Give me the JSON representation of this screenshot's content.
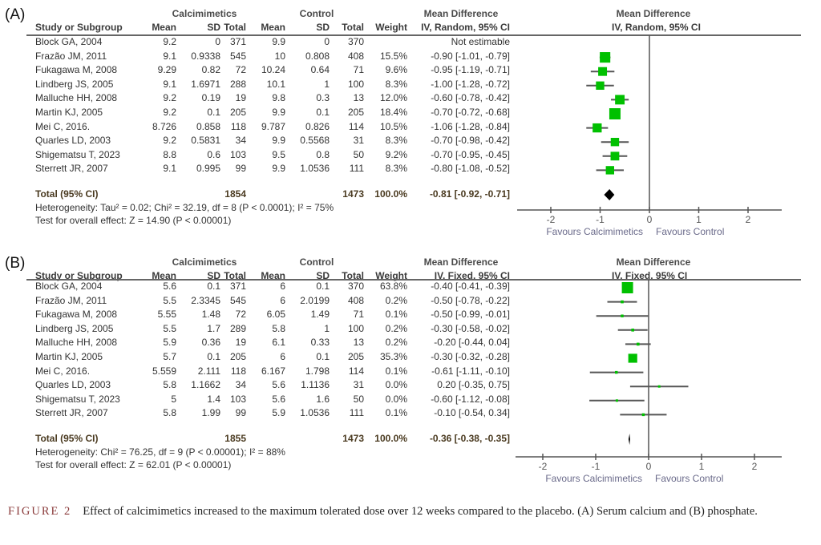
{
  "caption": {
    "label": "FIGURE 2",
    "text": "Effect of calcimimetics increased to the maximum tolerated dose over 12 weeks compared to the placebo. (A) Serum calcium and (B) phosphate."
  },
  "columns": {
    "study": "Study or Subgroup",
    "mean": "Mean",
    "sd": "SD",
    "total": "Total",
    "weight": "Weight",
    "group_exp": "Calcimimetics",
    "group_ctrl": "Control",
    "md_title": "Mean Difference"
  },
  "chart_data": [
    {
      "type": "forest",
      "panel": "(A)",
      "method": "IV, Random, 95% CI",
      "xlim": [
        -2.5,
        2.7
      ],
      "xticks": [
        "-2",
        "-1",
        "0",
        "1",
        "2"
      ],
      "xtick_values": [
        -2,
        -1,
        0,
        1,
        2
      ],
      "favours_left": "Favours Calcimimetics",
      "favours_right": "Favours Control",
      "studies": [
        {
          "name": "Block GA, 2004",
          "e_mean": "9.2",
          "e_sd": "0",
          "e_total": "371",
          "c_mean": "9.9",
          "c_sd": "0",
          "c_total": "370",
          "weight": "",
          "ci_text": "Not estimable",
          "md": null,
          "lo": null,
          "hi": null,
          "w": 0
        },
        {
          "name": "Frazão JM, 2011",
          "e_mean": "9.1",
          "e_sd": "0.9338",
          "e_total": "545",
          "c_mean": "10",
          "c_sd": "0.808",
          "c_total": "408",
          "weight": "15.5%",
          "ci_text": "-0.90 [-1.01, -0.79]",
          "md": -0.9,
          "lo": -1.01,
          "hi": -0.79,
          "w": 15.5
        },
        {
          "name": "Fukagawa M, 2008",
          "e_mean": "9.29",
          "e_sd": "0.82",
          "e_total": "72",
          "c_mean": "10.24",
          "c_sd": "0.64",
          "c_total": "71",
          "weight": "9.6%",
          "ci_text": "-0.95 [-1.19, -0.71]",
          "md": -0.95,
          "lo": -1.19,
          "hi": -0.71,
          "w": 9.6
        },
        {
          "name": "Lindberg JS, 2005",
          "e_mean": "9.1",
          "e_sd": "1.6971",
          "e_total": "288",
          "c_mean": "10.1",
          "c_sd": "1",
          "c_total": "100",
          "weight": "8.3%",
          "ci_text": "-1.00 [-1.28, -0.72]",
          "md": -1.0,
          "lo": -1.28,
          "hi": -0.72,
          "w": 8.3
        },
        {
          "name": "Malluche HH, 2008",
          "e_mean": "9.2",
          "e_sd": "0.19",
          "e_total": "19",
          "c_mean": "9.8",
          "c_sd": "0.3",
          "c_total": "13",
          "weight": "12.0%",
          "ci_text": "-0.60 [-0.78, -0.42]",
          "md": -0.6,
          "lo": -0.78,
          "hi": -0.42,
          "w": 12.0
        },
        {
          "name": "Martin KJ, 2005",
          "e_mean": "9.2",
          "e_sd": "0.1",
          "e_total": "205",
          "c_mean": "9.9",
          "c_sd": "0.1",
          "c_total": "205",
          "weight": "18.4%",
          "ci_text": "-0.70 [-0.72, -0.68]",
          "md": -0.7,
          "lo": -0.72,
          "hi": -0.68,
          "w": 18.4
        },
        {
          "name": "Mei C, 2016.",
          "e_mean": "8.726",
          "e_sd": "0.858",
          "e_total": "118",
          "c_mean": "9.787",
          "c_sd": "0.826",
          "c_total": "114",
          "weight": "10.5%",
          "ci_text": "-1.06 [-1.28, -0.84]",
          "md": -1.06,
          "lo": -1.28,
          "hi": -0.84,
          "w": 10.5
        },
        {
          "name": "Quarles LD, 2003",
          "e_mean": "9.2",
          "e_sd": "0.5831",
          "e_total": "34",
          "c_mean": "9.9",
          "c_sd": "0.5568",
          "c_total": "31",
          "weight": "8.3%",
          "ci_text": "-0.70 [-0.98, -0.42]",
          "md": -0.7,
          "lo": -0.98,
          "hi": -0.42,
          "w": 8.3
        },
        {
          "name": "Shigematsu T, 2023",
          "e_mean": "8.8",
          "e_sd": "0.6",
          "e_total": "103",
          "c_mean": "9.5",
          "c_sd": "0.8",
          "c_total": "50",
          "weight": "9.2%",
          "ci_text": "-0.70 [-0.95, -0.45]",
          "md": -0.7,
          "lo": -0.95,
          "hi": -0.45,
          "w": 9.2
        },
        {
          "name": "Sterrett JR, 2007",
          "e_mean": "9.1",
          "e_sd": "0.995",
          "e_total": "99",
          "c_mean": "9.9",
          "c_sd": "1.0536",
          "c_total": "111",
          "weight": "8.3%",
          "ci_text": "-0.80 [-1.08, -0.52]",
          "md": -0.8,
          "lo": -1.08,
          "hi": -0.52,
          "w": 8.3
        }
      ],
      "total": {
        "label": "Total (95% CI)",
        "e_total": "1854",
        "c_total": "1473",
        "weight": "100.0%",
        "ci_text": "-0.81 [-0.92, -0.71]",
        "md": -0.81,
        "lo": -0.92,
        "hi": -0.71
      },
      "heterogeneity": "Heterogeneity: Tau² = 0.02; Chi² = 32.19, df = 8 (P < 0.0001); I² = 75%",
      "overall_effect": "Test for overall effect: Z = 14.90 (P < 0.00001)"
    },
    {
      "type": "forest",
      "panel": "(B)",
      "method": "IV, Fixed, 95% CI",
      "xlim": [
        -2.5,
        2.9
      ],
      "xticks": [
        "-2",
        "-1",
        "0",
        "1",
        "2"
      ],
      "xtick_values": [
        -2,
        -1,
        0,
        1,
        2
      ],
      "favours_left": "Favours Calcimimetics",
      "favours_right": "Favours Control",
      "studies": [
        {
          "name": "Block GA, 2004",
          "e_mean": "5.6",
          "e_sd": "0.1",
          "e_total": "371",
          "c_mean": "6",
          "c_sd": "0.1",
          "c_total": "370",
          "weight": "63.8%",
          "ci_text": "-0.40 [-0.41, -0.39]",
          "md": -0.4,
          "lo": -0.41,
          "hi": -0.39,
          "w": 63.8
        },
        {
          "name": "Frazão JM, 2011",
          "e_mean": "5.5",
          "e_sd": "2.3345",
          "e_total": "545",
          "c_mean": "6",
          "c_sd": "2.0199",
          "c_total": "408",
          "weight": "0.2%",
          "ci_text": "-0.50 [-0.78, -0.22]",
          "md": -0.5,
          "lo": -0.78,
          "hi": -0.22,
          "w": 0.2
        },
        {
          "name": "Fukagawa M, 2008",
          "e_mean": "5.55",
          "e_sd": "1.48",
          "e_total": "72",
          "c_mean": "6.05",
          "c_sd": "1.49",
          "c_total": "71",
          "weight": "0.1%",
          "ci_text": "-0.50 [-0.99, -0.01]",
          "md": -0.5,
          "lo": -0.99,
          "hi": -0.01,
          "w": 0.1
        },
        {
          "name": "Lindberg JS, 2005",
          "e_mean": "5.5",
          "e_sd": "1.7",
          "e_total": "289",
          "c_mean": "5.8",
          "c_sd": "1",
          "c_total": "100",
          "weight": "0.2%",
          "ci_text": "-0.30 [-0.58, -0.02]",
          "md": -0.3,
          "lo": -0.58,
          "hi": -0.02,
          "w": 0.2
        },
        {
          "name": "Malluche HH, 2008",
          "e_mean": "5.9",
          "e_sd": "0.36",
          "e_total": "19",
          "c_mean": "6.1",
          "c_sd": "0.33",
          "c_total": "13",
          "weight": "0.2%",
          "ci_text": "-0.20 [-0.44, 0.04]",
          "md": -0.2,
          "lo": -0.44,
          "hi": 0.04,
          "w": 0.2
        },
        {
          "name": "Martin KJ, 2005",
          "e_mean": "5.7",
          "e_sd": "0.1",
          "e_total": "205",
          "c_mean": "6",
          "c_sd": "0.1",
          "c_total": "205",
          "weight": "35.3%",
          "ci_text": "-0.30 [-0.32, -0.28]",
          "md": -0.3,
          "lo": -0.32,
          "hi": -0.28,
          "w": 35.3
        },
        {
          "name": "Mei C, 2016.",
          "e_mean": "5.559",
          "e_sd": "2.111",
          "e_total": "118",
          "c_mean": "6.167",
          "c_sd": "1.798",
          "c_total": "114",
          "weight": "0.1%",
          "ci_text": "-0.61 [-1.11, -0.10]",
          "md": -0.61,
          "lo": -1.11,
          "hi": -0.1,
          "w": 0.1
        },
        {
          "name": "Quarles LD, 2003",
          "e_mean": "5.8",
          "e_sd": "1.1662",
          "e_total": "34",
          "c_mean": "5.6",
          "c_sd": "1.1136",
          "c_total": "31",
          "weight": "0.0%",
          "ci_text": "0.20 [-0.35, 0.75]",
          "md": 0.2,
          "lo": -0.35,
          "hi": 0.75,
          "w": 0.0
        },
        {
          "name": "Shigematsu T, 2023",
          "e_mean": "5",
          "e_sd": "1.4",
          "e_total": "103",
          "c_mean": "5.6",
          "c_sd": "1.6",
          "c_total": "50",
          "weight": "0.0%",
          "ci_text": "-0.60 [-1.12, -0.08]",
          "md": -0.6,
          "lo": -1.12,
          "hi": -0.08,
          "w": 0.0
        },
        {
          "name": "Sterrett JR, 2007",
          "e_mean": "5.8",
          "e_sd": "1.99",
          "e_total": "99",
          "c_mean": "5.9",
          "c_sd": "1.0536",
          "c_total": "111",
          "weight": "0.1%",
          "ci_text": "-0.10 [-0.54, 0.34]",
          "md": -0.1,
          "lo": -0.54,
          "hi": 0.34,
          "w": 0.1
        }
      ],
      "total": {
        "label": "Total (95% CI)",
        "e_total": "1855",
        "c_total": "1473",
        "weight": "100.0%",
        "ci_text": "-0.36 [-0.38, -0.35]",
        "md": -0.36,
        "lo": -0.38,
        "hi": -0.35
      },
      "heterogeneity": "Heterogeneity: Chi² = 76.25, df = 9 (P < 0.00001); I² = 88%",
      "overall_effect": "Test for overall effect: Z = 62.01 (P < 0.00001)"
    }
  ],
  "colors": {
    "point": "#00c000",
    "ci_line": "#555555",
    "diamond": "#000000",
    "axis": "#555555",
    "favours_text": "#6a6a8a"
  }
}
